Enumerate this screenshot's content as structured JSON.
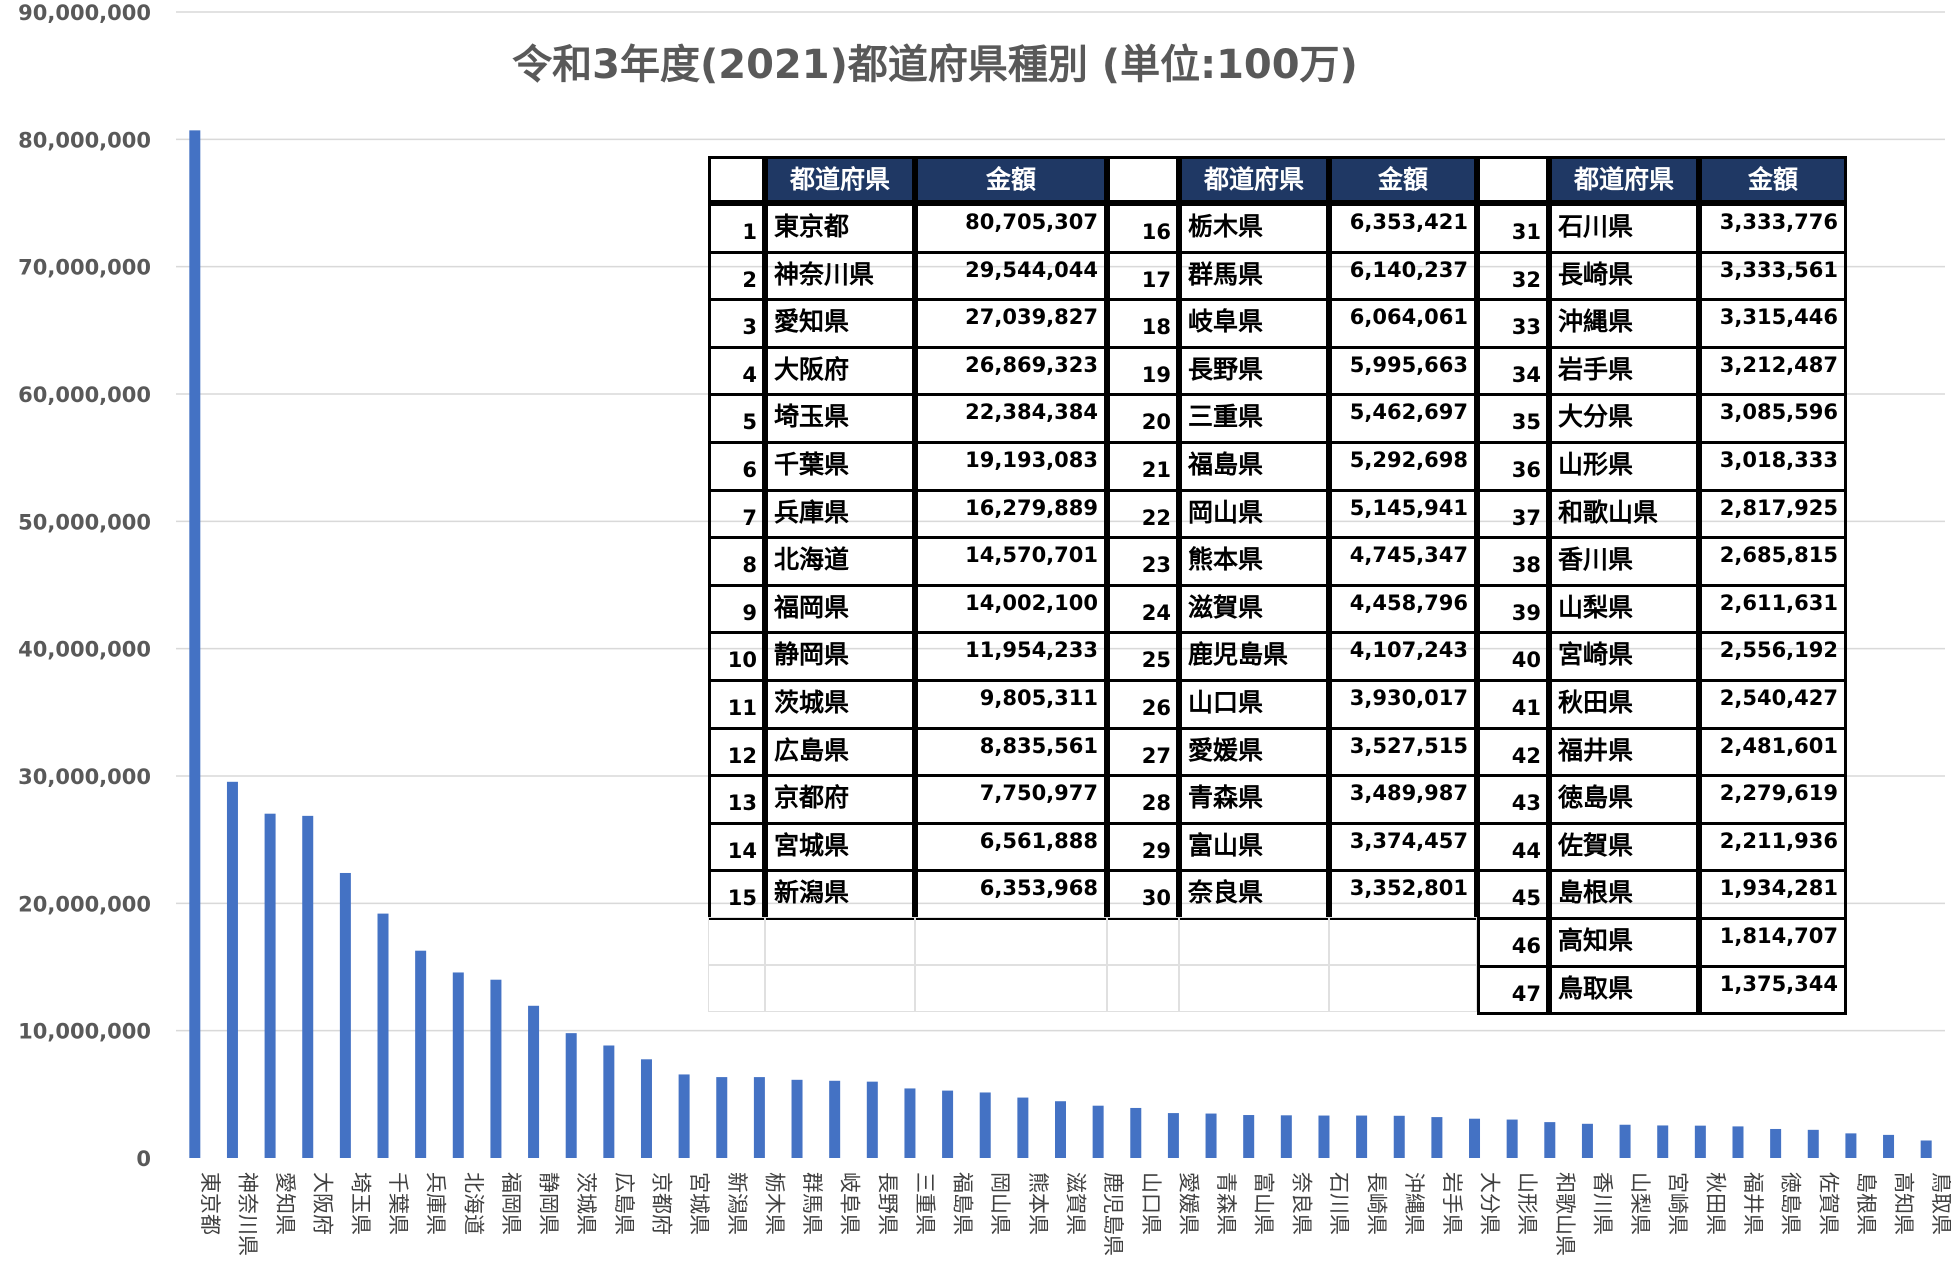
{
  "colors": {
    "bar": "#4472C4",
    "grid": "#d9d9d9",
    "header_bg": "#1f3864",
    "header_text": "#ffffff"
  },
  "chart_data": {
    "type": "bar",
    "title": "令和3年度(2021)都道府県種別 (単位:100万)",
    "ylim": [
      0,
      90000000
    ],
    "yticks": [
      "0",
      "10,000,000",
      "20,000,000",
      "30,000,000",
      "40,000,000",
      "50,000,000",
      "60,000,000",
      "70,000,000",
      "80,000,000",
      "90,000,000"
    ],
    "grid": true,
    "legend": "none",
    "categories": [
      "東京都",
      "神奈川県",
      "愛知県",
      "大阪府",
      "埼玉県",
      "千葉県",
      "兵庫県",
      "北海道",
      "福岡県",
      "静岡県",
      "茨城県",
      "広島県",
      "京都府",
      "宮城県",
      "新潟県",
      "栃木県",
      "群馬県",
      "岐阜県",
      "長野県",
      "三重県",
      "福島県",
      "岡山県",
      "熊本県",
      "滋賀県",
      "鹿児島県",
      "山口県",
      "愛媛県",
      "青森県",
      "富山県",
      "奈良県",
      "石川県",
      "長崎県",
      "沖縄県",
      "岩手県",
      "大分県",
      "山形県",
      "和歌山県",
      "香川県",
      "山梨県",
      "宮崎県",
      "秋田県",
      "福井県",
      "徳島県",
      "佐賀県",
      "島根県",
      "高知県",
      "鳥取県"
    ],
    "values": [
      80705307,
      29544044,
      27039827,
      26869323,
      22384384,
      19193083,
      16279889,
      14570701,
      14002100,
      11954233,
      9805311,
      8835561,
      7750977,
      6561888,
      6353968,
      6353421,
      6140237,
      6064061,
      5995663,
      5462697,
      5292698,
      5145941,
      4745347,
      4458796,
      4107243,
      3930017,
      3527515,
      3489987,
      3374457,
      3352801,
      3333776,
      3333561,
      3315446,
      3212487,
      3085596,
      3018333,
      2817925,
      2685815,
      2611631,
      2556192,
      2540427,
      2481601,
      2279619,
      2211936,
      1934281,
      1814707,
      1375344
    ]
  },
  "table": {
    "header_name": "都道府県",
    "header_amount": "金額",
    "rows": [
      {
        "rank": "1",
        "name": "東京都",
        "amount": "80,705,307"
      },
      {
        "rank": "2",
        "name": "神奈川県",
        "amount": "29,544,044"
      },
      {
        "rank": "3",
        "name": "愛知県",
        "amount": "27,039,827"
      },
      {
        "rank": "4",
        "name": "大阪府",
        "amount": "26,869,323"
      },
      {
        "rank": "5",
        "name": "埼玉県",
        "amount": "22,384,384"
      },
      {
        "rank": "6",
        "name": "千葉県",
        "amount": "19,193,083"
      },
      {
        "rank": "7",
        "name": "兵庫県",
        "amount": "16,279,889"
      },
      {
        "rank": "8",
        "name": "北海道",
        "amount": "14,570,701"
      },
      {
        "rank": "9",
        "name": "福岡県",
        "amount": "14,002,100"
      },
      {
        "rank": "10",
        "name": "静岡県",
        "amount": "11,954,233"
      },
      {
        "rank": "11",
        "name": "茨城県",
        "amount": "9,805,311"
      },
      {
        "rank": "12",
        "name": "広島県",
        "amount": "8,835,561"
      },
      {
        "rank": "13",
        "name": "京都府",
        "amount": "7,750,977"
      },
      {
        "rank": "14",
        "name": "宮城県",
        "amount": "6,561,888"
      },
      {
        "rank": "15",
        "name": "新潟県",
        "amount": "6,353,968"
      },
      {
        "rank": "16",
        "name": "栃木県",
        "amount": "6,353,421"
      },
      {
        "rank": "17",
        "name": "群馬県",
        "amount": "6,140,237"
      },
      {
        "rank": "18",
        "name": "岐阜県",
        "amount": "6,064,061"
      },
      {
        "rank": "19",
        "name": "長野県",
        "amount": "5,995,663"
      },
      {
        "rank": "20",
        "name": "三重県",
        "amount": "5,462,697"
      },
      {
        "rank": "21",
        "name": "福島県",
        "amount": "5,292,698"
      },
      {
        "rank": "22",
        "name": "岡山県",
        "amount": "5,145,941"
      },
      {
        "rank": "23",
        "name": "熊本県",
        "amount": "4,745,347"
      },
      {
        "rank": "24",
        "name": "滋賀県",
        "amount": "4,458,796"
      },
      {
        "rank": "25",
        "name": "鹿児島県",
        "amount": "4,107,243"
      },
      {
        "rank": "26",
        "name": "山口県",
        "amount": "3,930,017"
      },
      {
        "rank": "27",
        "name": "愛媛県",
        "amount": "3,527,515"
      },
      {
        "rank": "28",
        "name": "青森県",
        "amount": "3,489,987"
      },
      {
        "rank": "29",
        "name": "富山県",
        "amount": "3,374,457"
      },
      {
        "rank": "30",
        "name": "奈良県",
        "amount": "3,352,801"
      },
      {
        "rank": "31",
        "name": "石川県",
        "amount": "3,333,776"
      },
      {
        "rank": "32",
        "name": "長崎県",
        "amount": "3,333,561"
      },
      {
        "rank": "33",
        "name": "沖縄県",
        "amount": "3,315,446"
      },
      {
        "rank": "34",
        "name": "岩手県",
        "amount": "3,212,487"
      },
      {
        "rank": "35",
        "name": "大分県",
        "amount": "3,085,596"
      },
      {
        "rank": "36",
        "name": "山形県",
        "amount": "3,018,333"
      },
      {
        "rank": "37",
        "name": "和歌山県",
        "amount": "2,817,925"
      },
      {
        "rank": "38",
        "name": "香川県",
        "amount": "2,685,815"
      },
      {
        "rank": "39",
        "name": "山梨県",
        "amount": "2,611,631"
      },
      {
        "rank": "40",
        "name": "宮崎県",
        "amount": "2,556,192"
      },
      {
        "rank": "41",
        "name": "秋田県",
        "amount": "2,540,427"
      },
      {
        "rank": "42",
        "name": "福井県",
        "amount": "2,481,601"
      },
      {
        "rank": "43",
        "name": "徳島県",
        "amount": "2,279,619"
      },
      {
        "rank": "44",
        "name": "佐賀県",
        "amount": "2,211,936"
      },
      {
        "rank": "45",
        "name": "島根県",
        "amount": "1,934,281"
      },
      {
        "rank": "46",
        "name": "高知県",
        "amount": "1,814,707"
      },
      {
        "rank": "47",
        "name": "鳥取県",
        "amount": "1,375,344"
      }
    ]
  }
}
